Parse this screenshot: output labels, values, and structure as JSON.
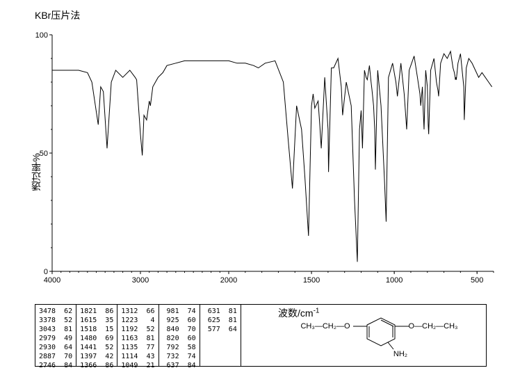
{
  "title": "KBr压片法",
  "yaxis": {
    "label": "透过率%",
    "min": 0,
    "max": 100,
    "ticks": [
      0,
      50,
      100
    ]
  },
  "xaxis": {
    "label": "波数/cm",
    "superscript": "-1",
    "min": 4000,
    "max": 400,
    "ticks": [
      4000,
      3000,
      2000,
      1500,
      1000,
      500
    ]
  },
  "chart": {
    "spectrum": [
      [
        4000,
        85
      ],
      [
        3900,
        85
      ],
      [
        3800,
        85
      ],
      [
        3700,
        85
      ],
      [
        3600,
        84
      ],
      [
        3550,
        80
      ],
      [
        3478,
        62
      ],
      [
        3450,
        78
      ],
      [
        3420,
        76
      ],
      [
        3378,
        52
      ],
      [
        3330,
        80
      ],
      [
        3280,
        85
      ],
      [
        3200,
        82
      ],
      [
        3120,
        85
      ],
      [
        3060,
        82
      ],
      [
        3043,
        81
      ],
      [
        3000,
        58
      ],
      [
        2979,
        49
      ],
      [
        2960,
        66
      ],
      [
        2930,
        64
      ],
      [
        2900,
        72
      ],
      [
        2887,
        70
      ],
      [
        2860,
        78
      ],
      [
        2800,
        82
      ],
      [
        2746,
        84
      ],
      [
        2700,
        87
      ],
      [
        2600,
        88
      ],
      [
        2500,
        89
      ],
      [
        2400,
        89
      ],
      [
        2300,
        89
      ],
      [
        2200,
        89
      ],
      [
        2100,
        89
      ],
      [
        2000,
        89
      ],
      [
        1950,
        88
      ],
      [
        1900,
        88
      ],
      [
        1850,
        87
      ],
      [
        1821,
        86
      ],
      [
        1780,
        88
      ],
      [
        1720,
        89
      ],
      [
        1670,
        80
      ],
      [
        1640,
        55
      ],
      [
        1615,
        35
      ],
      [
        1590,
        70
      ],
      [
        1560,
        60
      ],
      [
        1540,
        40
      ],
      [
        1518,
        15
      ],
      [
        1500,
        70
      ],
      [
        1490,
        75
      ],
      [
        1480,
        69
      ],
      [
        1460,
        72
      ],
      [
        1450,
        62
      ],
      [
        1441,
        52
      ],
      [
        1420,
        82
      ],
      [
        1400,
        60
      ],
      [
        1397,
        42
      ],
      [
        1380,
        86
      ],
      [
        1366,
        86
      ],
      [
        1340,
        90
      ],
      [
        1320,
        78
      ],
      [
        1312,
        66
      ],
      [
        1290,
        80
      ],
      [
        1260,
        70
      ],
      [
        1240,
        30
      ],
      [
        1223,
        4
      ],
      [
        1210,
        60
      ],
      [
        1200,
        68
      ],
      [
        1192,
        52
      ],
      [
        1180,
        85
      ],
      [
        1170,
        82
      ],
      [
        1163,
        81
      ],
      [
        1150,
        87
      ],
      [
        1140,
        80
      ],
      [
        1135,
        77
      ],
      [
        1125,
        70
      ],
      [
        1118,
        60
      ],
      [
        1114,
        43
      ],
      [
        1100,
        85
      ],
      [
        1080,
        70
      ],
      [
        1060,
        40
      ],
      [
        1049,
        21
      ],
      [
        1035,
        82
      ],
      [
        1010,
        88
      ],
      [
        990,
        80
      ],
      [
        981,
        74
      ],
      [
        960,
        88
      ],
      [
        940,
        75
      ],
      [
        925,
        60
      ],
      [
        910,
        85
      ],
      [
        880,
        91
      ],
      [
        860,
        82
      ],
      [
        845,
        75
      ],
      [
        840,
        70
      ],
      [
        830,
        78
      ],
      [
        825,
        68
      ],
      [
        820,
        60
      ],
      [
        810,
        85
      ],
      [
        800,
        78
      ],
      [
        795,
        62
      ],
      [
        792,
        58
      ],
      [
        780,
        85
      ],
      [
        760,
        90
      ],
      [
        745,
        80
      ],
      [
        735,
        76
      ],
      [
        732,
        74
      ],
      [
        720,
        88
      ],
      [
        700,
        92
      ],
      [
        680,
        90
      ],
      [
        660,
        93
      ],
      [
        645,
        86
      ],
      [
        637,
        84
      ],
      [
        632,
        82
      ],
      [
        631,
        81
      ],
      [
        628,
        82
      ],
      [
        625,
        81
      ],
      [
        615,
        88
      ],
      [
        600,
        92
      ],
      [
        580,
        78
      ],
      [
        577,
        64
      ],
      [
        565,
        86
      ],
      [
        550,
        90
      ],
      [
        530,
        88
      ],
      [
        510,
        85
      ],
      [
        490,
        82
      ],
      [
        470,
        84
      ],
      [
        450,
        82
      ],
      [
        430,
        80
      ],
      [
        410,
        78
      ]
    ],
    "baseline": 90,
    "stroke": "#000000",
    "background": "#ffffff",
    "axis_color": "#000000"
  },
  "peak_table": {
    "columns": [
      [
        [
          3478,
          62
        ],
        [
          3378,
          52
        ],
        [
          3043,
          81
        ],
        [
          2979,
          49
        ],
        [
          2930,
          64
        ],
        [
          2887,
          70
        ],
        [
          2746,
          84
        ]
      ],
      [
        [
          1821,
          86
        ],
        [
          1615,
          35
        ],
        [
          1518,
          15
        ],
        [
          1480,
          69
        ],
        [
          1441,
          52
        ],
        [
          1397,
          42
        ],
        [
          1366,
          86
        ]
      ],
      [
        [
          1312,
          66
        ],
        [
          1223,
          4
        ],
        [
          1192,
          52
        ],
        [
          1163,
          81
        ],
        [
          1135,
          77
        ],
        [
          1114,
          43
        ],
        [
          1049,
          21
        ]
      ],
      [
        [
          981,
          74
        ],
        [
          925,
          60
        ],
        [
          840,
          70
        ],
        [
          820,
          60
        ],
        [
          792,
          58
        ],
        [
          732,
          74
        ],
        [
          637,
          84
        ]
      ],
      [
        [
          631,
          81
        ],
        [
          625,
          81
        ],
        [
          577,
          64
        ]
      ]
    ]
  },
  "structure": {
    "left": "CH₃—CH₂—O",
    "right": "O—CH₂—CH₃",
    "substituent": "NH₂"
  }
}
